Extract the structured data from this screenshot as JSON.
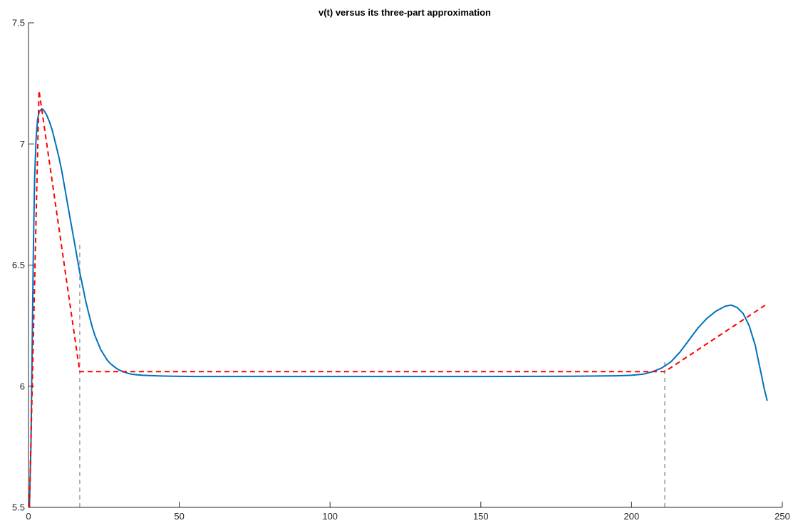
{
  "chart_data": {
    "type": "line",
    "title": "v(t) versus its three-part approximation",
    "xlabel": "",
    "ylabel": "",
    "xlim": [
      0,
      250
    ],
    "ylim": [
      5.5,
      7.5
    ],
    "xticks": [
      0,
      50,
      100,
      150,
      200,
      250
    ],
    "yticks": [
      5.5,
      6,
      6.5,
      7,
      7.5
    ],
    "xtick_labels": [
      "0",
      "50",
      "100",
      "150",
      "200",
      "250"
    ],
    "ytick_labels": [
      "5.5",
      "6",
      "6.5",
      "7",
      "7.5"
    ],
    "grid": false,
    "legend": "none",
    "series": [
      {
        "style": "solid",
        "color": "#0072BD",
        "x": [
          0.3,
          0.8,
          1.2,
          1.6,
          2,
          2.5,
          3,
          3.5,
          4,
          4.5,
          5,
          6,
          7,
          8,
          9,
          10,
          11,
          12,
          13,
          14,
          15,
          16,
          17,
          18,
          19,
          20,
          21,
          22,
          23,
          24,
          25,
          26,
          27,
          28,
          29,
          30,
          32,
          34,
          36,
          38,
          40,
          44,
          48,
          55,
          70,
          100,
          150,
          180,
          195,
          200,
          204,
          207,
          210,
          213,
          216,
          219,
          222,
          225,
          228,
          231,
          233,
          235,
          237,
          239,
          241,
          242,
          243,
          244,
          245
        ],
        "y": [
          5.5,
          5.75,
          6.15,
          6.55,
          6.85,
          7.02,
          7.1,
          7.13,
          7.14,
          7.145,
          7.14,
          7.12,
          7.09,
          7.05,
          7.0,
          6.95,
          6.89,
          6.82,
          6.75,
          6.68,
          6.61,
          6.54,
          6.47,
          6.41,
          6.35,
          6.3,
          6.25,
          6.21,
          6.18,
          6.15,
          6.13,
          6.11,
          6.095,
          6.085,
          6.075,
          6.067,
          6.057,
          6.05,
          6.047,
          6.045,
          6.044,
          6.042,
          6.041,
          6.04,
          6.04,
          6.04,
          6.04,
          6.041,
          6.043,
          6.045,
          6.05,
          6.06,
          6.075,
          6.1,
          6.14,
          6.19,
          6.24,
          6.28,
          6.31,
          6.33,
          6.335,
          6.325,
          6.3,
          6.25,
          6.17,
          6.11,
          6.05,
          5.99,
          5.94
        ]
      },
      {
        "style": "dashed",
        "color": "#FF0000",
        "x": [
          0.3,
          3.5,
          17,
          211,
          245
        ],
        "y": [
          5.5,
          7.22,
          6.06,
          6.06,
          6.34
        ]
      },
      {
        "style": "dashed",
        "color": "#A0A0A0",
        "x": [
          17,
          17
        ],
        "y": [
          5.5,
          6.6
        ]
      },
      {
        "style": "dashed",
        "color": "#A0A0A0",
        "x": [
          211,
          211
        ],
        "y": [
          5.5,
          6.1
        ]
      }
    ]
  }
}
